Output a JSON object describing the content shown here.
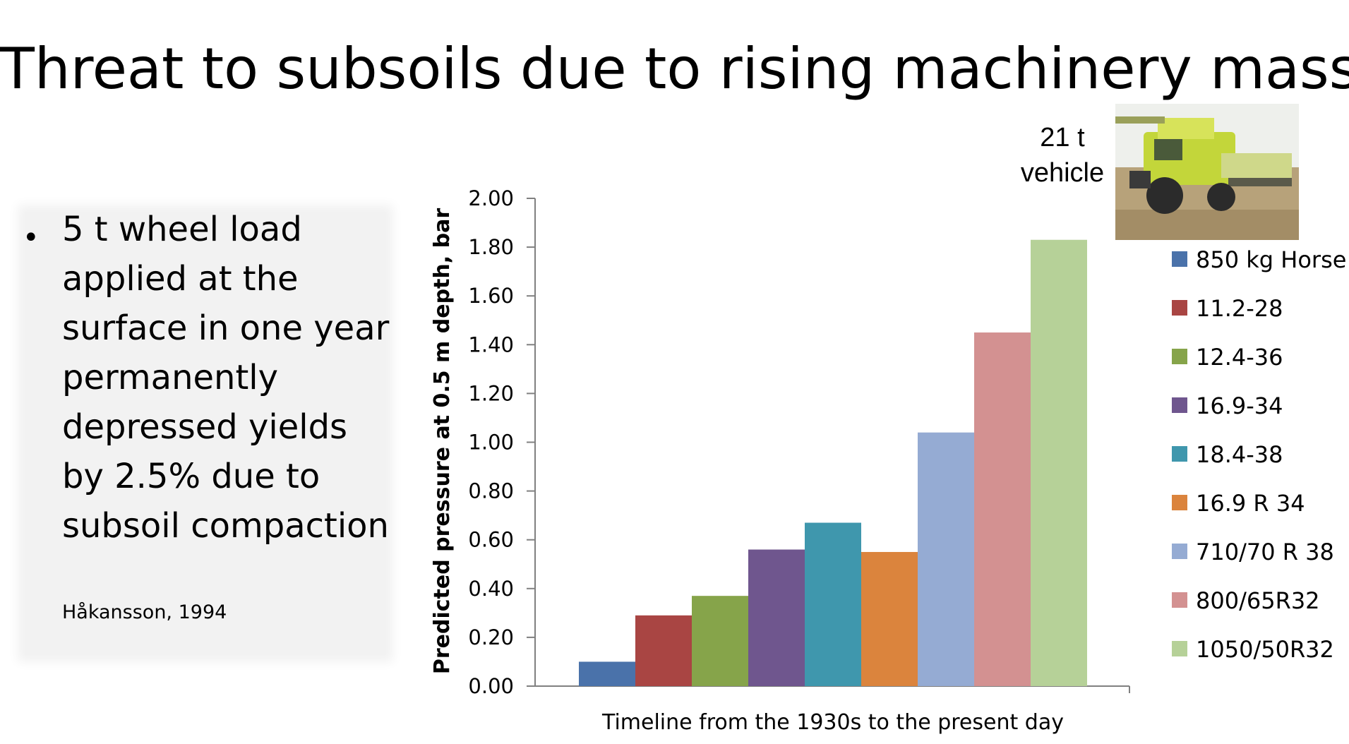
{
  "slide": {
    "title": "Threat to subsoils due to rising machinery mass",
    "bullet_text": "5 t wheel load applied at the surface in one year permanently depressed yields by 2.5% due to subsoil compaction",
    "citation": "Håkansson, 1994",
    "vehicle_label_line1": "21 t",
    "vehicle_label_line2": "vehicle",
    "photo_icon": "combine-harvester-photo"
  },
  "chart_data": {
    "type": "bar",
    "title": "",
    "xlabel": "Timeline from the 1930s to the present day",
    "ylabel": "Predicted pressure at 0.5 m depth, bar",
    "ylim": [
      0,
      2.0
    ],
    "yticks": [
      "0.00",
      "0.20",
      "0.40",
      "0.60",
      "0.80",
      "1.00",
      "1.20",
      "1.40",
      "1.60",
      "1.80",
      "2.00"
    ],
    "legend_position": "right",
    "series": [
      {
        "name": "850 kg Horse",
        "value": 0.1,
        "color": "#4a72aa"
      },
      {
        "name": "11.2-28",
        "value": 0.29,
        "color": "#a94543"
      },
      {
        "name": "12.4-36",
        "value": 0.37,
        "color": "#86a44a"
      },
      {
        "name": "16.9-34",
        "value": 0.56,
        "color": "#6f568e"
      },
      {
        "name": "18.4-38",
        "value": 0.67,
        "color": "#3f97ad"
      },
      {
        "name": "16.9 R 34",
        "value": 0.55,
        "color": "#db843d"
      },
      {
        "name": "710/70 R 38",
        "value": 1.04,
        "color": "#95abd3"
      },
      {
        "name": "800/65R32",
        "value": 1.45,
        "color": "#d39191"
      },
      {
        "name": "1050/50R32",
        "value": 1.83,
        "color": "#b6d198"
      }
    ]
  }
}
